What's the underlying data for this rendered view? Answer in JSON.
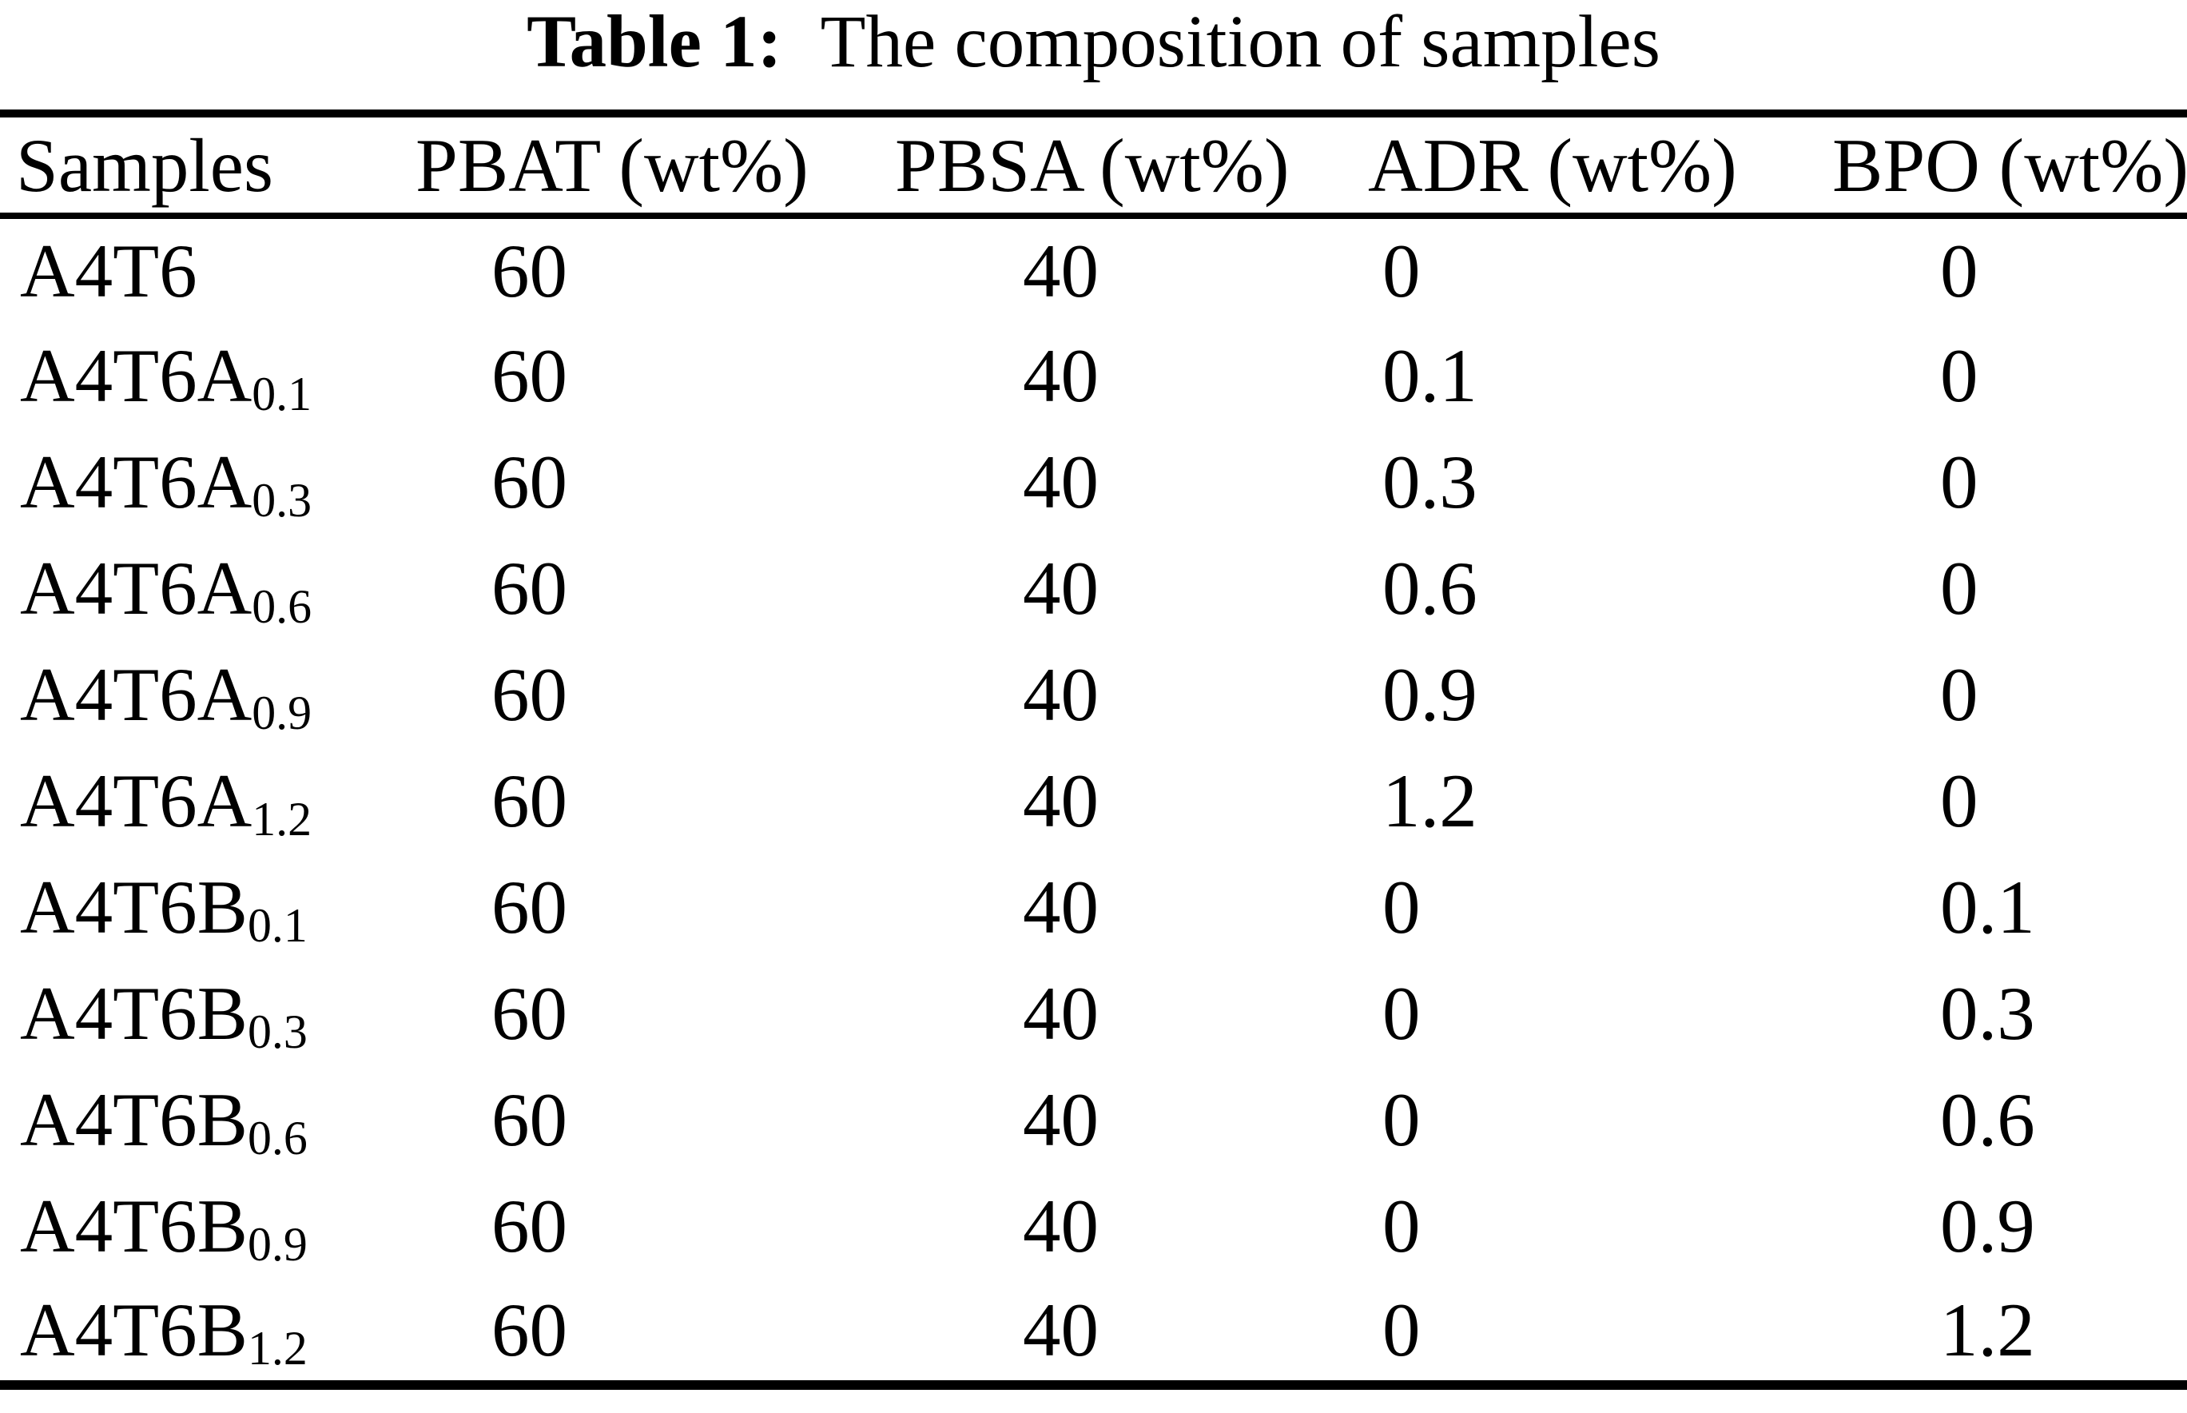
{
  "title": {
    "label": "Table 1:",
    "text": "The composition of samples"
  },
  "table": {
    "columns": [
      "Samples",
      "PBAT (wt%)",
      "PBSA (wt%)",
      "ADR (wt%)",
      "BPO (wt%)"
    ],
    "rows": [
      {
        "sample_base": "A4T6",
        "sample_sub": "",
        "pbat": "60",
        "pbsa": "40",
        "adr": "0",
        "bpo": "0"
      },
      {
        "sample_base": "A4T6A",
        "sample_sub": "0.1",
        "pbat": "60",
        "pbsa": "40",
        "adr": "0.1",
        "bpo": "0"
      },
      {
        "sample_base": "A4T6A",
        "sample_sub": "0.3",
        "pbat": "60",
        "pbsa": "40",
        "adr": "0.3",
        "bpo": "0"
      },
      {
        "sample_base": "A4T6A",
        "sample_sub": "0.6",
        "pbat": "60",
        "pbsa": "40",
        "adr": "0.6",
        "bpo": "0"
      },
      {
        "sample_base": "A4T6A",
        "sample_sub": "0.9",
        "pbat": "60",
        "pbsa": "40",
        "adr": "0.9",
        "bpo": "0"
      },
      {
        "sample_base": "A4T6A",
        "sample_sub": "1.2",
        "pbat": "60",
        "pbsa": "40",
        "adr": "1.2",
        "bpo": "0"
      },
      {
        "sample_base": "A4T6B",
        "sample_sub": "0.1",
        "pbat": "60",
        "pbsa": "40",
        "adr": "0",
        "bpo": "0.1"
      },
      {
        "sample_base": "A4T6B",
        "sample_sub": "0.3",
        "pbat": "60",
        "pbsa": "40",
        "adr": "0",
        "bpo": "0.3"
      },
      {
        "sample_base": "A4T6B",
        "sample_sub": "0.6",
        "pbat": "60",
        "pbsa": "40",
        "adr": "0",
        "bpo": "0.6"
      },
      {
        "sample_base": "A4T6B",
        "sample_sub": "0.9",
        "pbat": "60",
        "pbsa": "40",
        "adr": "0",
        "bpo": "0.9"
      },
      {
        "sample_base": "A4T6B",
        "sample_sub": "1.2",
        "pbat": "60",
        "pbsa": "40",
        "adr": "0",
        "bpo": "1.2"
      }
    ]
  },
  "colors": {
    "text": "#000000",
    "background": "#ffffff",
    "rule": "#000000"
  }
}
